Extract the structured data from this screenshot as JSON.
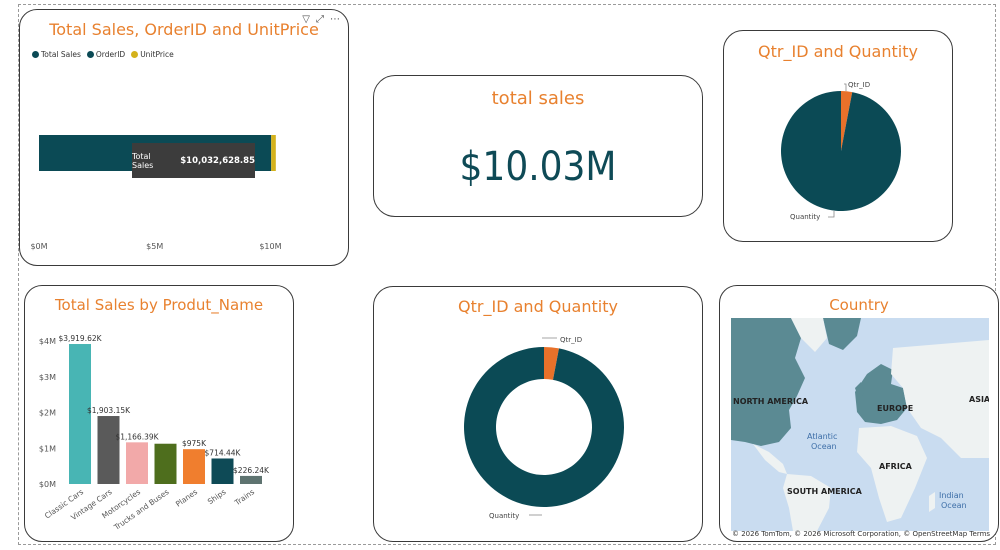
{
  "colors": {
    "title": "#E8812F",
    "teal_dark": "#0B4A55",
    "gold": "#D4B21C",
    "orange": "#E8712A"
  },
  "sales_card": {
    "title": "Total Sales, OrderID and UnitPrice",
    "legend": [
      "Total Sales",
      "OrderID",
      "UnitPrice"
    ],
    "tooltip_label": "Total Sales",
    "tooltip_value": "$10,032,628.85",
    "axis_labels": [
      "$0M",
      "$5M",
      "$10M"
    ],
    "toolbar_icons": [
      "filter-icon",
      "focus-mode-icon",
      "more-options-icon"
    ]
  },
  "kpi_card": {
    "title": "total sales",
    "value": "$10.03M"
  },
  "pie_card": {
    "title": "Qtr_ID and Quantity",
    "label_small": "Qtr_ID",
    "label_large": "Quantity"
  },
  "bar_card": {
    "title": "Total Sales by Produt_Name"
  },
  "donut_card": {
    "title": "Qtr_ID and Quantity",
    "label_small": "Qtr_ID",
    "label_large": "Quantity"
  },
  "map_card": {
    "title": "Country",
    "labels": {
      "north_america": "NORTH AMERICA",
      "europe": "EUROPE",
      "asia": "ASIA",
      "africa": "AFRICA",
      "south_america": "SOUTH AMERICA",
      "atlantic": "Atlantic",
      "ocean": "Ocean",
      "indian": "Indian",
      "ocean2": "Ocean"
    },
    "credit": "© 2026 TomTom, © 2026 Microsoft Corporation, © OpenStreetMap Terms"
  },
  "chart_data": [
    {
      "type": "bar",
      "orientation": "horizontal",
      "title": "Total Sales, OrderID and UnitPrice",
      "series": [
        {
          "name": "Total Sales",
          "values": [
            10032628.85
          ]
        },
        {
          "name": "OrderID",
          "values": [
            0
          ]
        },
        {
          "name": "UnitPrice",
          "values": [
            200000
          ]
        }
      ],
      "xlim": [
        0,
        10500000
      ],
      "xticks": [
        "$0M",
        "$5M",
        "$10M"
      ]
    },
    {
      "type": "pie",
      "title": "Qtr_ID and Quantity",
      "slices": [
        {
          "label": "Qtr_ID",
          "value": 3
        },
        {
          "label": "Quantity",
          "value": 97
        }
      ]
    },
    {
      "type": "bar",
      "title": "Total Sales by Produt_Name",
      "categories": [
        "Classic Cars",
        "Vintage Cars",
        "Motorcycles",
        "Trucks and Buses",
        "Planes",
        "Ships",
        "Trains"
      ],
      "values": [
        3919.62,
        1903.15,
        1166.39,
        1127.79,
        975,
        714.44,
        226.24
      ],
      "data_labels": [
        "$3,919.62K",
        "$1,903.15K",
        "$1,166.39K",
        "",
        "$975K",
        "$714.44K",
        "$226.24K"
      ],
      "bar_colors": [
        "#48B5B4",
        "#5A5A5A",
        "#F2A9A9",
        "#4E6E1D",
        "#F07E2E",
        "#0E4A56",
        "#5E7370"
      ],
      "ylim": [
        0,
        4200
      ],
      "yticks": [
        0,
        1000,
        2000,
        3000,
        4000
      ],
      "ytick_labels": [
        "$0M",
        "$1M",
        "$2M",
        "$3M",
        "$4M"
      ]
    },
    {
      "type": "pie",
      "title": "Qtr_ID and Quantity",
      "donut": true,
      "slices": [
        {
          "label": "Qtr_ID",
          "value": 3
        },
        {
          "label": "Quantity",
          "value": 97
        }
      ]
    }
  ]
}
